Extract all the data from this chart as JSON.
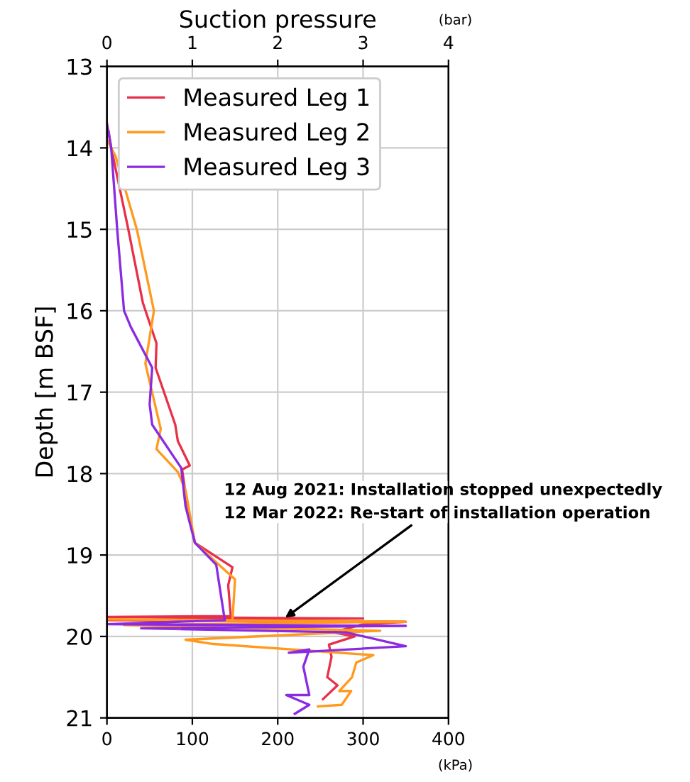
{
  "chart_data": {
    "type": "line",
    "ylabel": "Depth [m BSF]",
    "x2label": "Suction pressure",
    "xlim": [
      0,
      400
    ],
    "xticks": [
      0,
      100,
      200,
      300,
      400
    ],
    "ylim": [
      21,
      13
    ],
    "yticks": [
      13,
      14,
      15,
      16,
      17,
      18,
      19,
      20,
      21
    ],
    "x2lim": [
      0,
      4
    ],
    "x2ticks": [
      0,
      1,
      2,
      3,
      4
    ],
    "grid": true,
    "legend": "top left",
    "marker": "none",
    "line_style": "solid",
    "annotations": [
      {
        "text": "12 Aug 2021: Installation stopped unexpectedly\n12 Mar 2022: Re-start of installation operation",
        "x": 205,
        "y": 19.8
      },
      "(bar)",
      "(kPa)"
    ],
    "series": [
      {
        "name": "Measured Leg 1",
        "color": "#e8304a",
        "x": [
          2,
          5,
          25,
          42,
          58,
          57,
          80,
          83,
          97,
          88,
          95,
          103,
          147,
          142,
          145,
          0,
          300,
          0,
          350,
          300,
          265,
          290,
          260,
          263,
          258,
          270,
          253
        ],
        "values": [
          13.8,
          14.0,
          15.0,
          15.9,
          16.4,
          16.7,
          17.4,
          17.6,
          17.9,
          17.95,
          18.45,
          18.85,
          19.15,
          19.37,
          19.75,
          19.76,
          19.78,
          19.8,
          19.82,
          19.85,
          19.95,
          20.0,
          20.1,
          20.25,
          20.5,
          20.6,
          20.77
        ]
      },
      {
        "name": "Measured Leg 2",
        "color": "#ff9a1e",
        "x": [
          0,
          10,
          35,
          55,
          45,
          63,
          58,
          83,
          92,
          103,
          150,
          147,
          0,
          350,
          20,
          320,
          92,
          122,
          312,
          292,
          287,
          272,
          286,
          275,
          247
        ],
        "values": [
          13.9,
          14.1,
          15.0,
          16.0,
          16.65,
          17.45,
          17.7,
          17.98,
          18.2,
          18.85,
          19.3,
          19.8,
          19.79,
          19.82,
          19.86,
          19.93,
          20.04,
          20.09,
          20.23,
          20.32,
          20.5,
          20.67,
          20.67,
          20.84,
          20.86
        ]
      },
      {
        "name": "Measured Leg 3",
        "color": "#8a2be2",
        "x": [
          0,
          5,
          12,
          20,
          28,
          53,
          50,
          53,
          87,
          92,
          103,
          128,
          138,
          0,
          350,
          40,
          280,
          350,
          213,
          237,
          230,
          237,
          210,
          237,
          220
        ],
        "values": [
          13.7,
          14.0,
          15.0,
          16.0,
          16.2,
          16.7,
          17.15,
          17.4,
          17.93,
          18.4,
          18.85,
          19.12,
          19.8,
          19.85,
          19.87,
          19.9,
          19.95,
          20.12,
          20.2,
          20.16,
          20.37,
          20.72,
          20.72,
          20.84,
          20.95
        ]
      }
    ]
  }
}
